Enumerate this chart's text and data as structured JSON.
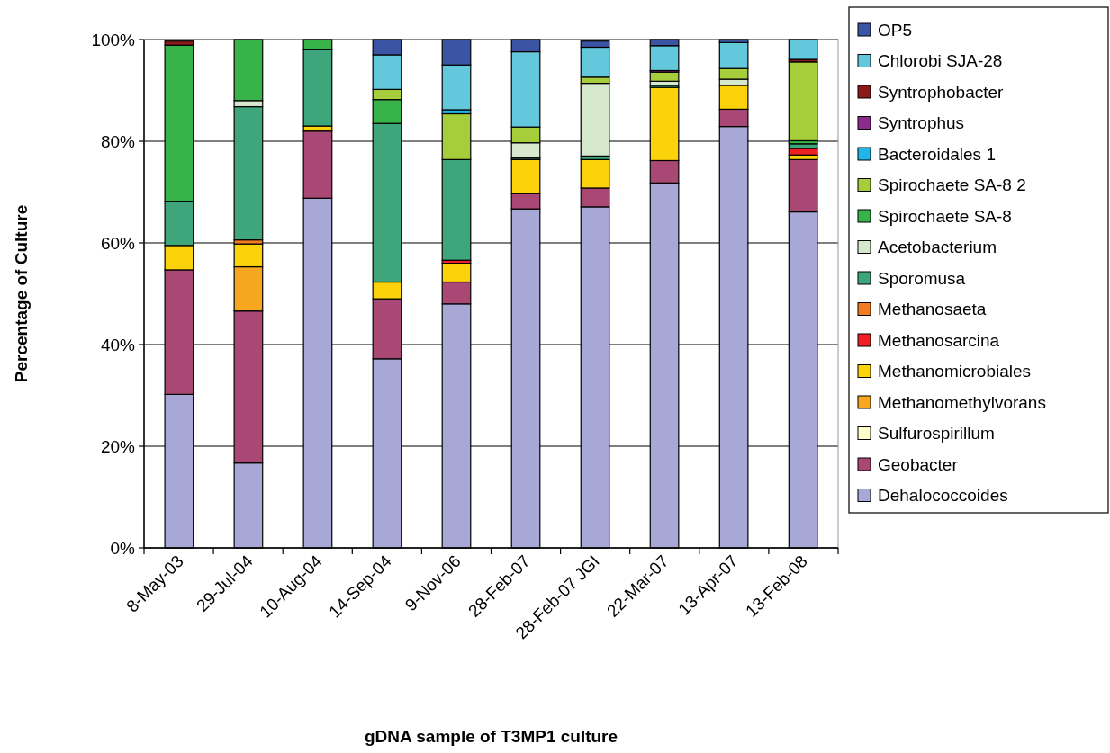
{
  "chart_data": {
    "type": "bar",
    "stacked": true,
    "xlabel": "gDNA sample of T3MP1 culture",
    "ylabel": "Percentage of Culture",
    "categories": [
      "8-May-03",
      "29-Jul-04",
      "10-Aug-04",
      "14-Sep-04",
      "9-Nov-06",
      "28-Feb-07",
      "28-Feb-07 JGI",
      "22-Mar-07",
      "13-Apr-07",
      "13-Feb-08"
    ],
    "ylim": [
      0,
      100
    ],
    "yticks": [
      {
        "value": 0,
        "label": "0%"
      },
      {
        "value": 20,
        "label": "20%"
      },
      {
        "value": 40,
        "label": "40%"
      },
      {
        "value": 60,
        "label": "60%"
      },
      {
        "value": 80,
        "label": "80%"
      },
      {
        "value": 100,
        "label": "100%"
      }
    ],
    "grid": "y",
    "legend": "right",
    "series": [
      {
        "name": "Dehalococcoides",
        "color": "#a7a8d5",
        "values": [
          30.2,
          16.7,
          68.8,
          37.2,
          48,
          66.7,
          67.1,
          71.8,
          82.9,
          66.1
        ]
      },
      {
        "name": "Geobacter",
        "color": "#a94874",
        "values": [
          24.5,
          29.9,
          13.2,
          11.8,
          4.3,
          3,
          3.7,
          4.4,
          3.4,
          10.3
        ]
      },
      {
        "name": "Sulfurospirillum",
        "color": "#ffffcc",
        "values": [
          0,
          0,
          0,
          0,
          0,
          0,
          0,
          0,
          0,
          0
        ]
      },
      {
        "name": "Methanomethylvorans",
        "color": "#f7a620",
        "values": [
          0,
          8.7,
          0,
          0,
          0,
          0,
          0,
          0,
          0,
          0
        ]
      },
      {
        "name": "Methanomicrobiales",
        "color": "#fcd20a",
        "values": [
          4.8,
          4.5,
          1,
          3.3,
          3.7,
          6.7,
          5.6,
          14.4,
          4.7,
          0.9
        ]
      },
      {
        "name": "Methanosarcina",
        "color": "#ee2024",
        "values": [
          0,
          0,
          0,
          0,
          0.6,
          0,
          0,
          0,
          0,
          1.3
        ]
      },
      {
        "name": "Methanosaeta",
        "color": "#f47c20",
        "values": [
          null,
          0.8,
          0,
          0,
          0,
          0,
          0,
          0,
          0,
          0
        ]
      },
      {
        "name": "Sporomusa",
        "color": "#3ea67a",
        "values": [
          8.7,
          26.2,
          15,
          31.2,
          19.8,
          0.3,
          0.7,
          0.4,
          0,
          0.9
        ]
      },
      {
        "name": "Acetobacterium",
        "color": "#d6e9cd",
        "values": [
          0,
          1.2,
          0,
          0,
          0,
          3,
          14.3,
          0.8,
          1.2,
          0
        ]
      },
      {
        "name": "Spirochaete SA-8",
        "color": "#38b34a",
        "values": [
          30.7,
          12,
          2,
          4.7,
          0,
          0,
          0,
          0,
          0,
          0.6
        ]
      },
      {
        "name": "Spirochaete SA-8 2",
        "color": "#a6cd3a",
        "values": [
          0,
          0,
          0,
          2,
          9,
          3.1,
          1.2,
          1.8,
          2.1,
          15.5
        ]
      },
      {
        "name": "Bacteroidales 1",
        "color": "#20b6e8",
        "values": [
          0,
          0,
          0,
          0,
          0.8,
          0,
          null,
          0,
          0,
          0
        ]
      },
      {
        "name": "Syntrophus",
        "color": "#8e2a8e",
        "values": [
          0,
          0,
          0,
          0,
          0,
          0,
          0,
          0.3,
          0,
          0
        ]
      },
      {
        "name": "Syntrophobacter",
        "color": "#8b1a1a",
        "values": [
          0.8,
          0,
          0,
          0,
          0,
          0,
          0,
          0,
          0,
          0.5
        ]
      },
      {
        "name": "Chlorobi SJA-28",
        "color": "#64c8dc",
        "values": [
          0,
          0,
          0,
          6.8,
          8.8,
          14.8,
          5.9,
          4.9,
          5.1,
          3.9
        ]
      },
      {
        "name": "OP5",
        "color": "#3b55a4",
        "values": [
          0,
          0,
          0,
          3,
          5,
          2.4,
          1.2,
          1.2,
          0.6,
          0
        ]
      }
    ]
  }
}
